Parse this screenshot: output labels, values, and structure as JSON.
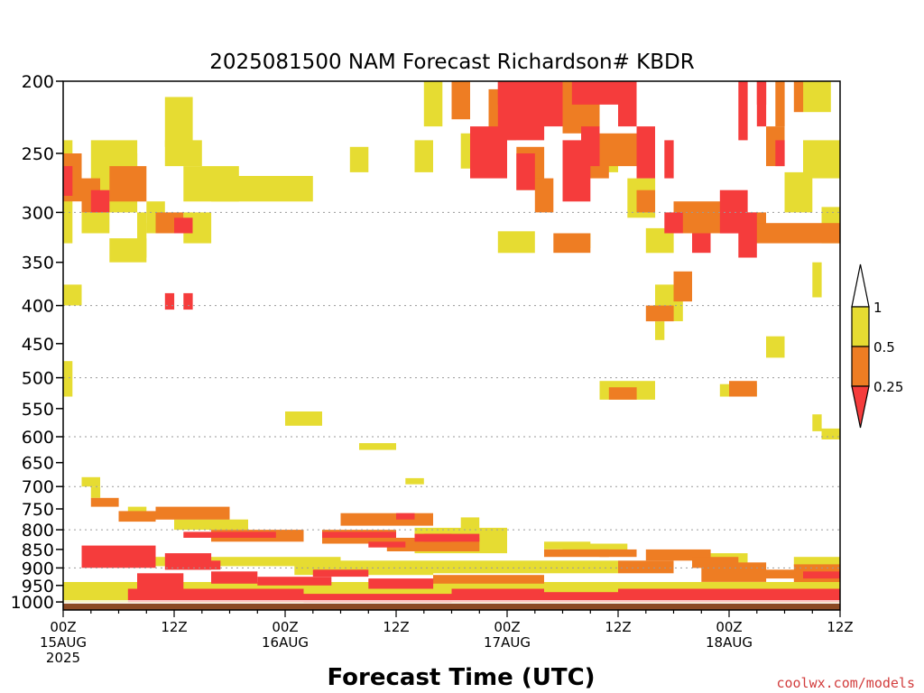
{
  "chart_data": {
    "type": "heatmap",
    "title": "2025081500 NAM Forecast Richardson# KBDR",
    "xlabel": "Forecast Time (UTC)",
    "ylabel": "",
    "credit": "coolwx.com/models",
    "x_unit": "forecast hour",
    "xlim": [
      0,
      84
    ],
    "ylim": [
      1025,
      200
    ],
    "y_scale": "log",
    "y_ticks": [
      200,
      250,
      300,
      350,
      400,
      450,
      500,
      550,
      600,
      650,
      700,
      750,
      800,
      850,
      900,
      950,
      1000
    ],
    "gridlines_at": [
      300,
      400,
      500,
      600,
      700,
      800,
      900
    ],
    "x_ticks": [
      {
        "hour": 0,
        "l1": "00Z",
        "l2": "15AUG",
        "l3": "2025"
      },
      {
        "hour": 12,
        "l1": "12Z",
        "l2": "",
        "l3": ""
      },
      {
        "hour": 24,
        "l1": "00Z",
        "l2": "16AUG",
        "l3": ""
      },
      {
        "hour": 36,
        "l1": "12Z",
        "l2": "",
        "l3": ""
      },
      {
        "hour": 48,
        "l1": "00Z",
        "l2": "17AUG",
        "l3": ""
      },
      {
        "hour": 60,
        "l1": "12Z",
        "l2": "",
        "l3": ""
      },
      {
        "hour": 72,
        "l1": "00Z",
        "l2": "18AUG",
        "l3": ""
      },
      {
        "hour": 84,
        "l1": "12Z",
        "l2": "",
        "l3": ""
      }
    ],
    "legend": {
      "position": "right",
      "labels": [
        "1",
        "0.5",
        "0.25"
      ],
      "bins": [
        {
          "range": "0.5-1",
          "color": "#e6dc32"
        },
        {
          "range": "0.25-0.5",
          "color": "#ee7d23"
        },
        {
          "range": "<0.25",
          "color": "#f53c3c"
        }
      ]
    },
    "colors": {
      "yellow": "#e6dc32",
      "orange": "#ee7d23",
      "red": "#f53c3c",
      "ground": "#8b4a24"
    },
    "surface_pressure": 1005,
    "series": [
      {
        "category": "yellow",
        "rects": [
          [
            0,
            1,
            240,
            330
          ],
          [
            3,
            8,
            240,
            300
          ],
          [
            2,
            5,
            300,
            320
          ],
          [
            5,
            8,
            250,
            280
          ],
          [
            11,
            14,
            210,
            245
          ],
          [
            11,
            15,
            240,
            260
          ],
          [
            13,
            19,
            260,
            290
          ],
          [
            16,
            27,
            268,
            290
          ],
          [
            8,
            9,
            300,
            320
          ],
          [
            9,
            11,
            290,
            320
          ],
          [
            13,
            16,
            300,
            330
          ],
          [
            5,
            9,
            325,
            350
          ],
          [
            8,
            9,
            310,
            345
          ],
          [
            31,
            33,
            245,
            265
          ],
          [
            38,
            40,
            240,
            265
          ],
          [
            0,
            2,
            375,
            400
          ],
          [
            0,
            1,
            475,
            530
          ],
          [
            24,
            28,
            555,
            580
          ],
          [
            32,
            36,
            612,
            625
          ],
          [
            37,
            39,
            682,
            695
          ],
          [
            2,
            4,
            680,
            700
          ],
          [
            3,
            4,
            700,
            725
          ],
          [
            7,
            9,
            745,
            775
          ],
          [
            12,
            20,
            775,
            800
          ],
          [
            43,
            45,
            770,
            800
          ],
          [
            38,
            48,
            795,
            860
          ],
          [
            52,
            57,
            830,
            850
          ],
          [
            54,
            61,
            835,
            855
          ],
          [
            70,
            74,
            860,
            890
          ],
          [
            79,
            84,
            870,
            895
          ],
          [
            40,
            60,
            880,
            915
          ],
          [
            25,
            40,
            880,
            920
          ],
          [
            8,
            30,
            870,
            895
          ],
          [
            0,
            84,
            940,
            1000
          ],
          [
            39,
            41,
            195,
            230
          ],
          [
            43,
            44,
            235,
            262
          ],
          [
            58,
            60,
            240,
            265
          ],
          [
            47,
            51,
            318,
            340
          ],
          [
            54,
            57,
            320,
            335
          ],
          [
            61,
            64,
            270,
            305
          ],
          [
            63,
            66,
            315,
            340
          ],
          [
            78,
            81,
            265,
            300
          ],
          [
            80,
            84,
            240,
            270
          ],
          [
            82,
            84,
            295,
            330
          ],
          [
            80,
            83,
            200,
            220
          ],
          [
            81,
            82,
            350,
            390
          ],
          [
            58,
            64,
            505,
            535
          ],
          [
            71,
            75,
            510,
            530
          ],
          [
            76,
            78,
            440,
            470
          ],
          [
            81,
            82,
            560,
            590
          ],
          [
            82,
            84,
            585,
            605
          ],
          [
            64,
            67,
            375,
            420
          ],
          [
            64,
            65,
            420,
            445
          ]
        ]
      },
      {
        "category": "orange",
        "rects": [
          [
            0,
            2,
            250,
            290
          ],
          [
            2,
            4,
            270,
            300
          ],
          [
            5,
            9,
            260,
            290
          ],
          [
            10,
            13,
            300,
            320
          ],
          [
            3,
            6,
            725,
            745
          ],
          [
            6,
            10,
            755,
            780
          ],
          [
            10,
            18,
            745,
            775
          ],
          [
            16,
            26,
            800,
            830
          ],
          [
            30,
            40,
            760,
            790
          ],
          [
            28,
            36,
            800,
            835
          ],
          [
            35,
            45,
            820,
            855
          ],
          [
            52,
            59,
            850,
            870
          ],
          [
            58,
            62,
            850,
            870
          ],
          [
            63,
            70,
            850,
            880
          ],
          [
            68,
            73,
            870,
            900
          ],
          [
            60,
            66,
            880,
            915
          ],
          [
            69,
            76,
            885,
            940
          ],
          [
            79,
            84,
            890,
            940
          ],
          [
            76,
            80,
            905,
            930
          ],
          [
            40,
            52,
            920,
            945
          ],
          [
            42,
            44,
            200,
            225
          ],
          [
            46,
            49,
            205,
            240
          ],
          [
            49,
            52,
            245,
            280
          ],
          [
            51,
            53,
            270,
            300
          ],
          [
            54,
            58,
            200,
            235
          ],
          [
            56,
            59,
            240,
            270
          ],
          [
            53,
            57,
            320,
            340
          ],
          [
            58,
            62,
            235,
            260
          ],
          [
            62,
            64,
            280,
            300
          ],
          [
            66,
            70,
            290,
            320
          ],
          [
            70,
            74,
            290,
            320
          ],
          [
            74,
            76,
            300,
            320
          ],
          [
            76,
            78,
            230,
            260
          ],
          [
            77,
            78,
            200,
            230
          ],
          [
            79,
            80,
            200,
            220
          ],
          [
            74,
            84,
            310,
            330
          ],
          [
            66,
            68,
            360,
            395
          ],
          [
            72,
            75,
            505,
            530
          ],
          [
            59,
            62,
            515,
            535
          ],
          [
            63,
            66,
            400,
            420
          ]
        ]
      },
      {
        "category": "red",
        "rects": [
          [
            0,
            1,
            260,
            285
          ],
          [
            3,
            5,
            280,
            300
          ],
          [
            11,
            12,
            385,
            405
          ],
          [
            13,
            14,
            385,
            405
          ],
          [
            12,
            14,
            305,
            320
          ],
          [
            13,
            23,
            805,
            820
          ],
          [
            28,
            36,
            805,
            820
          ],
          [
            33,
            37,
            830,
            845
          ],
          [
            38,
            42,
            810,
            830
          ],
          [
            36,
            38,
            760,
            775
          ],
          [
            39,
            45,
            810,
            830
          ],
          [
            2,
            6,
            840,
            900
          ],
          [
            6,
            10,
            840,
            900
          ],
          [
            11,
            16,
            860,
            905
          ],
          [
            8,
            13,
            915,
            960
          ],
          [
            13,
            17,
            880,
            905
          ],
          [
            16,
            21,
            910,
            945
          ],
          [
            21,
            29,
            925,
            950
          ],
          [
            27,
            33,
            905,
            925
          ],
          [
            33,
            40,
            930,
            960
          ],
          [
            7,
            14,
            960,
            1000
          ],
          [
            14,
            26,
            960,
            1000
          ],
          [
            26,
            32,
            975,
            1000
          ],
          [
            32,
            42,
            975,
            1000
          ],
          [
            42,
            52,
            960,
            1000
          ],
          [
            52,
            60,
            970,
            1000
          ],
          [
            60,
            72,
            960,
            1000
          ],
          [
            72,
            84,
            960,
            1000
          ],
          [
            80,
            84,
            910,
            930
          ],
          [
            47,
            52,
            200,
            240
          ],
          [
            44,
            48,
            230,
            270
          ],
          [
            52,
            54,
            200,
            230
          ],
          [
            49,
            51,
            250,
            280
          ],
          [
            54,
            57,
            240,
            290
          ],
          [
            56,
            58,
            230,
            260
          ],
          [
            60,
            62,
            200,
            230
          ],
          [
            62,
            64,
            230,
            270
          ],
          [
            65,
            66,
            240,
            270
          ],
          [
            65,
            67,
            300,
            320
          ],
          [
            68,
            70,
            320,
            340
          ],
          [
            73,
            74,
            200,
            240
          ],
          [
            75,
            76,
            200,
            230
          ],
          [
            77,
            78,
            240,
            260
          ],
          [
            71,
            74,
            280,
            320
          ],
          [
            73,
            75,
            300,
            345
          ],
          [
            75,
            76,
            200,
            215
          ],
          [
            47,
            49,
            200,
            215
          ],
          [
            55,
            60,
            200,
            215
          ]
        ]
      },
      {
        "category": "white",
        "rects": [
          [
            0,
            84,
            995,
            999
          ]
        ]
      }
    ]
  }
}
